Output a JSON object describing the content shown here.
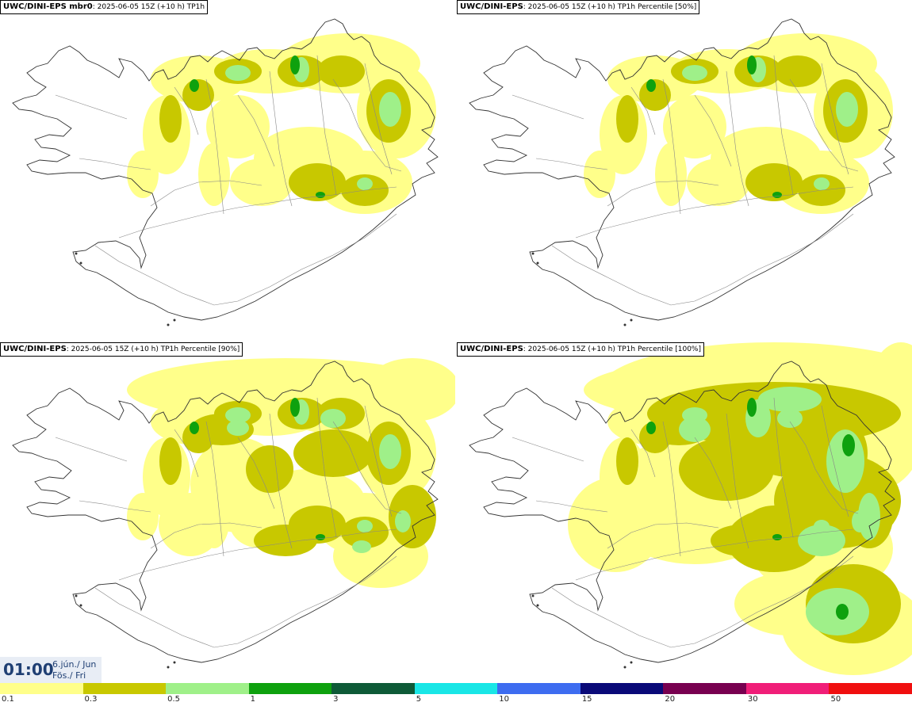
{
  "panels": [
    {
      "id": "p1",
      "model": "UWC/DINI-EPS mbr0",
      "info": "2025-06-05 15Z (+10 h) TP1h",
      "intensity": 1
    },
    {
      "id": "p2",
      "model": "UWC/DINI-EPS",
      "info": "2025-06-05 15Z (+10 h) TP1h Percentile [50%]",
      "intensity": 1
    },
    {
      "id": "p3",
      "model": "UWC/DINI-EPS",
      "info": "2025-06-05 15Z (+10 h) TP1h Percentile [90%]",
      "intensity": 2
    },
    {
      "id": "p4",
      "model": "UWC/DINI-EPS",
      "info": "2025-06-05 15Z (+10 h) TP1h Percentile [100%]",
      "intensity": 3
    }
  ],
  "timestamp": {
    "time": "01:00",
    "date_line1": "6.jún./ Jun",
    "date_line2": "Fös./ Fri"
  },
  "legend": {
    "colors": [
      "#ffff8a",
      "#c8c800",
      "#9ff089",
      "#0ea10e",
      "#0e5a37",
      "#19e6e6",
      "#3d6cf0",
      "#0a0a78",
      "#780050",
      "#f01e78",
      "#f00f0f"
    ],
    "ticks": [
      "0.1",
      "0.3",
      "0.5",
      "1",
      "3",
      "5",
      "10",
      "15",
      "20",
      "30",
      "50"
    ]
  }
}
